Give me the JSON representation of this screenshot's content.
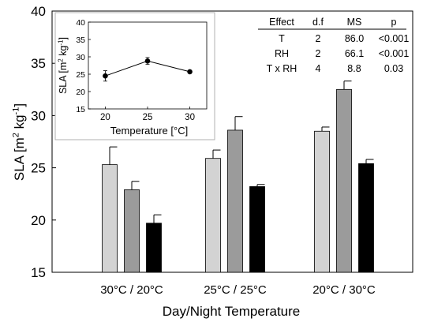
{
  "chart_data": [
    {
      "type": "bar",
      "title": "",
      "xlabel": "Day/Night Temperature",
      "ylabel": {
        "main": "SLA [m",
        "sup1": "2",
        "mid": " kg",
        "sup2": "-1",
        "end": "]"
      },
      "ylim": [
        15,
        40
      ],
      "yticks": [
        15,
        20,
        25,
        30,
        35,
        40
      ],
      "categories": [
        "30°C / 20°C",
        "25°C / 25°C",
        "20°C / 30°C"
      ],
      "series": [
        {
          "color": "#d3d3d3",
          "values": [
            25.3,
            25.9,
            28.5
          ],
          "errors": [
            1.7,
            0.8,
            0.4
          ]
        },
        {
          "color": "#9b9b9b",
          "values": [
            22.9,
            28.6,
            32.5
          ],
          "errors": [
            0.8,
            1.3,
            0.8
          ]
        },
        {
          "color": "#000000",
          "values": [
            19.7,
            23.2,
            25.4
          ],
          "errors": [
            0.8,
            0.2,
            0.4
          ]
        }
      ],
      "stats_table": {
        "headers": [
          "Effect",
          "d.f",
          "MS",
          "p"
        ],
        "rows": [
          [
            "T",
            "2",
            "86.0",
            "<0.001"
          ],
          [
            "RH",
            "2",
            "66.1",
            "<0.001"
          ],
          [
            "T x RH",
            "4",
            "8.8",
            "0.03"
          ]
        ]
      }
    },
    {
      "type": "line",
      "title": "",
      "xlabel": "Temperature [°C]",
      "ylabel": {
        "main": "SLA [m",
        "sup1": "2",
        "mid": " kg",
        "sup2": "-1",
        "end": "]"
      },
      "x": [
        20,
        25,
        30
      ],
      "y": [
        24.5,
        28.8,
        25.7
      ],
      "errors": [
        1.5,
        1.0,
        0.3
      ],
      "xlim": [
        18,
        32
      ],
      "ylim": [
        15,
        40
      ],
      "xticks": [
        20,
        25,
        30
      ],
      "yticks": [
        15,
        20,
        25,
        30,
        35,
        40
      ]
    }
  ]
}
